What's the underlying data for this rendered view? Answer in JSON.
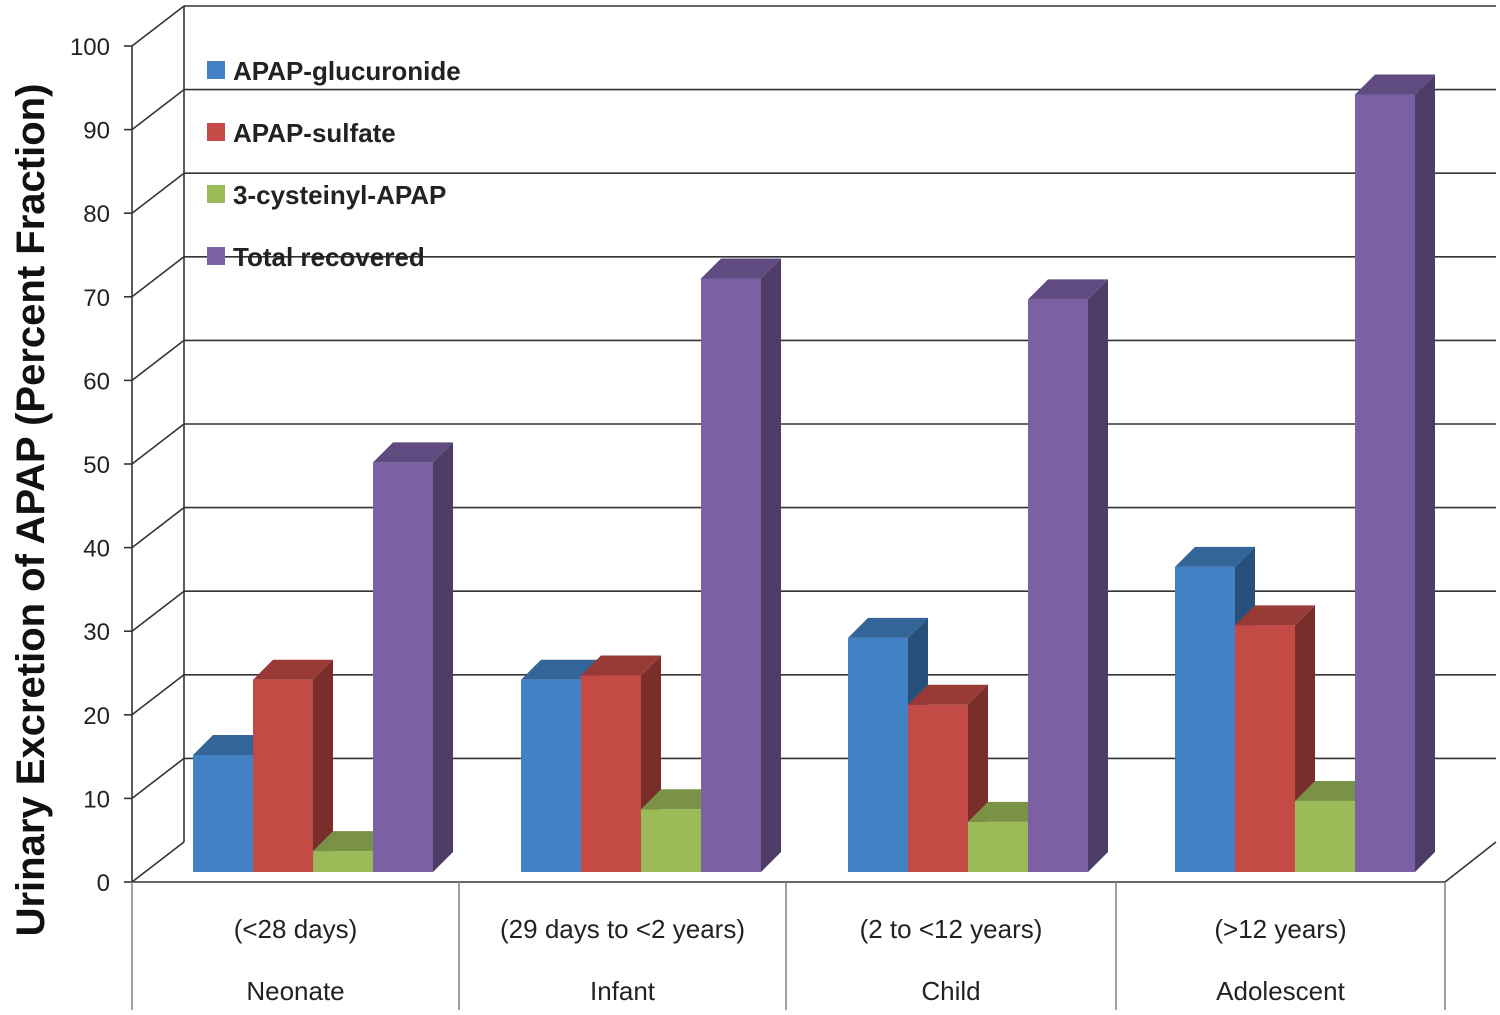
{
  "chart_data": {
    "type": "bar",
    "title": "",
    "ylabel": "Urinary Excretion of APAP (Percent Fraction)",
    "xlabel": "",
    "ylim": [
      0,
      100
    ],
    "yticks": [
      0,
      10,
      20,
      30,
      40,
      50,
      60,
      70,
      80,
      90,
      100
    ],
    "grid": true,
    "legend_position": "top-left",
    "categories": [
      {
        "group": "Neonate",
        "range": "(<28 days)"
      },
      {
        "group": "Infant",
        "range": "(29 days to <2 years)"
      },
      {
        "group": "Child",
        "range": "(2 to <12 years)"
      },
      {
        "group": "Adolescent",
        "range": "(>12 years)"
      }
    ],
    "series": [
      {
        "name": "APAP-glucuronide",
        "color": "#4181C4",
        "values": [
          14,
          23,
          28,
          36.5
        ]
      },
      {
        "name": "APAP-sulfate",
        "color": "#C44A45",
        "values": [
          23,
          23.5,
          20,
          29.5
        ]
      },
      {
        "name": "3-cysteinyl-APAP",
        "color": "#9BBB59",
        "values": [
          2.5,
          7.5,
          6,
          8.5
        ]
      },
      {
        "name": "Total recovered",
        "color": "#7B60A4",
        "values": [
          49,
          71,
          68.5,
          93
        ]
      }
    ]
  }
}
